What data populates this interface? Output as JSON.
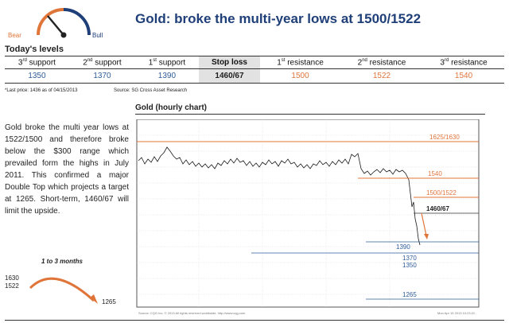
{
  "header": {
    "gauge_bear": "Bear",
    "gauge_bull": "Bull",
    "title": "Gold: broke the multi-year lows at 1500/1522"
  },
  "levels": {
    "title": "Today's levels",
    "cols": [
      {
        "n": "3",
        "s": "rd",
        "l": " support",
        "v": "1350",
        "kind": "sup"
      },
      {
        "n": "2",
        "s": "nd",
        "l": " support",
        "v": "1370",
        "kind": "sup"
      },
      {
        "n": "1",
        "s": "st",
        "l": " support",
        "v": "1390",
        "kind": "sup"
      },
      {
        "n": "",
        "s": "",
        "l": "Stop loss",
        "v": "1460/67",
        "kind": "stop"
      },
      {
        "n": "1",
        "s": "st",
        "l": " resistance",
        "v": "1500",
        "kind": "res"
      },
      {
        "n": "2",
        "s": "nd",
        "l": " resistance",
        "v": "1522",
        "kind": "res"
      },
      {
        "n": "3",
        "s": "rd",
        "l": " resistance",
        "v": "1540",
        "kind": "res"
      }
    ],
    "footnote_price": "*Last price:  1436 as of 04/15/2013",
    "footnote_source": "Source: SG Cross Asset Research"
  },
  "chart": {
    "title": "Gold (hourly chart)",
    "labels": {
      "r3": "1625/1630",
      "r2": "1540",
      "r1": "1500/1522",
      "stop": "1460/67",
      "s1": "1390",
      "s2": "1370",
      "s3": "1350",
      "target": "1265"
    },
    "source_note": "Source: CQG Inc. © 2013 All rights reserved worldwide. http://www.cqg.com",
    "date_note": "Mon Apr 15 2013 10:23:21"
  },
  "commentary": {
    "text": "Gold broke the multi year lows at 1522/1500 and therefore broke below the $300 range which prevailed form the highs in July 2011. This confirmed a major Double Top which projects a target at 1265. Short-term, 1460/67 will limit the upside."
  },
  "outlook": {
    "title": "1 to 3 months",
    "from_high": "1630",
    "from_low": "1522",
    "target": "1265"
  },
  "colors": {
    "title_blue": "#1f3f78",
    "support_blue": "#2e5c9a",
    "resistance_orange": "#e0753a",
    "stop_grey": "#e2e2e2"
  }
}
